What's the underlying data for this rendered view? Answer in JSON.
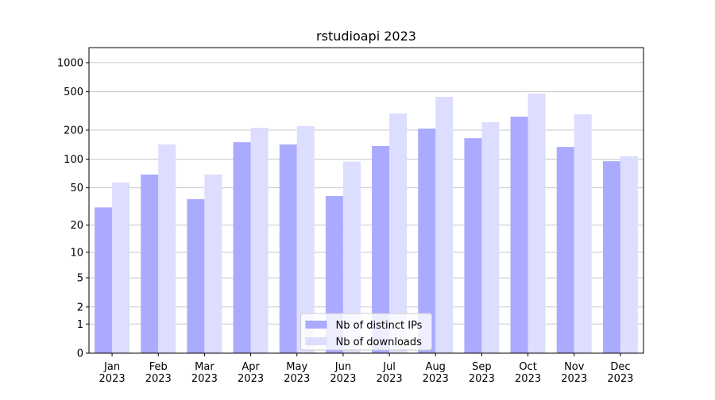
{
  "chart_data": {
    "type": "bar",
    "title": "rstudioapi 2023",
    "categories": [
      "Jan\n2023",
      "Feb\n2023",
      "Mar\n2023",
      "Apr\n2023",
      "May\n2023",
      "Jun\n2023",
      "Jul\n2023",
      "Aug\n2023",
      "Sep\n2023",
      "Oct\n2023",
      "Nov\n2023",
      "Dec\n2023"
    ],
    "series": [
      {
        "name": "Nb of distinct IPs",
        "color": "#aaaaff",
        "values": [
          31,
          69,
          38,
          150,
          142,
          41,
          137,
          208,
          165,
          276,
          134,
          95
        ]
      },
      {
        "name": "Nb of downloads",
        "color": "#ddddff",
        "values": [
          57,
          142,
          69,
          212,
          220,
          94,
          298,
          443,
          242,
          478,
          292,
          107
        ]
      }
    ],
    "yscale": "log1p",
    "ylim": [
      0,
      1430
    ],
    "yticks": [
      0,
      1,
      2,
      5,
      10,
      20,
      50,
      100,
      200,
      500,
      1000
    ],
    "grid": true,
    "legend": "lower center"
  }
}
